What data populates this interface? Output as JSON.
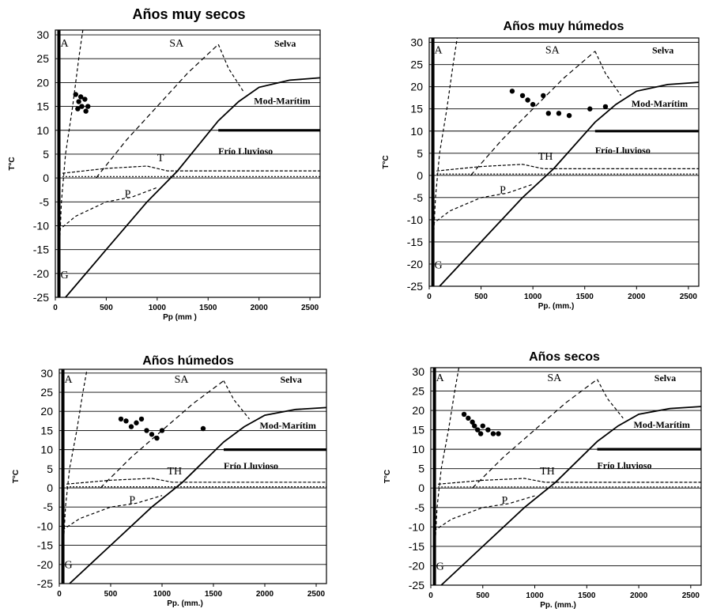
{
  "figure": {
    "colors": {
      "ink": "#000000",
      "grid": "#000000",
      "background": "#ffffff"
    }
  },
  "chart_data": [
    {
      "type": "line",
      "title": "Años muy secos",
      "xlabel": "Pp (mm )",
      "ylabel": "T°C",
      "xlim": [
        0,
        2600
      ],
      "ylim": [
        -25,
        31
      ],
      "x_ticks": [
        0,
        500,
        1000,
        1500,
        2000,
        2500
      ],
      "y_ticks": [
        30,
        25,
        20,
        15,
        10,
        5,
        0,
        -5,
        -10,
        -15,
        -20,
        -25
      ],
      "grid": "horizontal",
      "zone_labels": [
        "A",
        "SA",
        "Selva",
        "Mod-Marítim",
        "Frío Lluvioso",
        "T",
        "P",
        "G"
      ],
      "observations": {
        "x_range": [
          180,
          340
        ],
        "y_range": [
          14,
          18
        ],
        "points": [
          [
            200,
            17.5
          ],
          [
            230,
            16
          ],
          [
            260,
            15
          ],
          [
            290,
            16.5
          ],
          [
            320,
            15
          ],
          [
            250,
            17
          ],
          [
            220,
            14.5
          ],
          [
            300,
            14
          ]
        ]
      }
    },
    {
      "type": "line",
      "title": "Años muy húmedos",
      "xlabel": "Pp. (mm.)",
      "ylabel": "T°C",
      "xlim": [
        0,
        2600
      ],
      "ylim": [
        -25,
        31
      ],
      "x_ticks": [
        0,
        500,
        1000,
        1500,
        2000,
        2500
      ],
      "y_ticks": [
        30,
        25,
        20,
        15,
        10,
        5,
        0,
        -5,
        -10,
        -15,
        -20,
        -25
      ],
      "grid": "horizontal",
      "zone_labels": [
        "A",
        "SA",
        "Selva",
        "Mod-Marítim",
        "Frío-Lluvioso",
        "TH",
        "P",
        "G"
      ],
      "observations": {
        "x_range": [
          780,
          1700
        ],
        "y_range": [
          13.5,
          19
        ],
        "points": [
          [
            800,
            19
          ],
          [
            900,
            18
          ],
          [
            950,
            17
          ],
          [
            1000,
            16
          ],
          [
            1100,
            18
          ],
          [
            1150,
            14
          ],
          [
            1250,
            14
          ],
          [
            1350,
            13.5
          ],
          [
            1550,
            15
          ],
          [
            1700,
            15.5
          ]
        ]
      }
    },
    {
      "type": "line",
      "title": "Años húmedos",
      "xlabel": "Pp. (mm.)",
      "ylabel": "T°C",
      "xlim": [
        0,
        2600
      ],
      "ylim": [
        -25,
        31
      ],
      "x_ticks": [
        0,
        500,
        1000,
        1500,
        2000,
        2500
      ],
      "y_ticks": [
        30,
        25,
        20,
        15,
        10,
        5,
        0,
        -5,
        -10,
        -15,
        -20,
        -25
      ],
      "grid": "horizontal",
      "zone_labels": [
        "A",
        "SA",
        "Selva",
        "Mod-Marítim",
        "Frío Lluvioso",
        "TH",
        "P",
        "G"
      ],
      "observations": {
        "x_range": [
          600,
          1400
        ],
        "y_range": [
          12.5,
          18.5
        ],
        "points": [
          [
            600,
            18
          ],
          [
            650,
            17.5
          ],
          [
            700,
            16
          ],
          [
            750,
            17
          ],
          [
            800,
            18
          ],
          [
            850,
            15
          ],
          [
            900,
            14
          ],
          [
            950,
            13
          ],
          [
            1000,
            15
          ],
          [
            1400,
            15.5
          ]
        ]
      }
    },
    {
      "type": "line",
      "title": "Años secos",
      "xlabel": "Pp. (mm.)",
      "ylabel": "T°C",
      "xlim": [
        0,
        2600
      ],
      "ylim": [
        -25,
        31
      ],
      "x_ticks": [
        0,
        500,
        1000,
        1500,
        2000,
        2500
      ],
      "y_ticks": [
        30,
        25,
        20,
        15,
        10,
        5,
        0,
        -5,
        -10,
        -15,
        -20,
        -25
      ],
      "grid": "horizontal",
      "zone_labels": [
        "A",
        "SA",
        "Selva",
        "Mod-Marítim",
        "Frío Lluvioso",
        "TH",
        "P",
        "G"
      ],
      "observations": {
        "x_range": [
          300,
          650
        ],
        "y_range": [
          12.5,
          19
        ],
        "points": [
          [
            320,
            19
          ],
          [
            360,
            18
          ],
          [
            400,
            17
          ],
          [
            420,
            16
          ],
          [
            450,
            15
          ],
          [
            480,
            14
          ],
          [
            500,
            16
          ],
          [
            550,
            15
          ],
          [
            600,
            14
          ],
          [
            650,
            14
          ]
        ]
      }
    }
  ],
  "boundaries": {
    "A_curve": [
      [
        30,
        -25
      ],
      [
        40,
        -15
      ],
      [
        60,
        -5
      ],
      [
        100,
        5
      ],
      [
        170,
        15
      ],
      [
        230,
        25
      ],
      [
        270,
        31
      ]
    ],
    "SA_diag": [
      [
        400,
        0
      ],
      [
        700,
        8
      ],
      [
        1000,
        15
      ],
      [
        1300,
        22
      ],
      [
        1600,
        28
      ]
    ],
    "SA_peak": [
      [
        1600,
        28
      ],
      [
        1700,
        23
      ],
      [
        1850,
        18
      ]
    ],
    "P_curve": [
      [
        30,
        -11
      ],
      [
        200,
        -8
      ],
      [
        500,
        -5
      ],
      [
        750,
        -4
      ],
      [
        1000,
        -2
      ]
    ],
    "T_upper": [
      [
        70,
        1
      ],
      [
        500,
        2
      ],
      [
        900,
        2.5
      ],
      [
        1100,
        1.5
      ],
      [
        2600,
        1.5
      ]
    ],
    "T_lower": [
      [
        70,
        0.3
      ],
      [
        2600,
        0.3
      ]
    ],
    "Main_diag": [
      [
        100,
        -25
      ],
      [
        500,
        -15
      ],
      [
        900,
        -5
      ],
      [
        1200,
        1.5
      ],
      [
        1600,
        12
      ],
      [
        1800,
        16
      ],
      [
        2000,
        19
      ],
      [
        2300,
        20.5
      ],
      [
        2600,
        21
      ]
    ],
    "Cold_bold": [
      [
        1600,
        10
      ],
      [
        2600,
        10
      ]
    ]
  }
}
